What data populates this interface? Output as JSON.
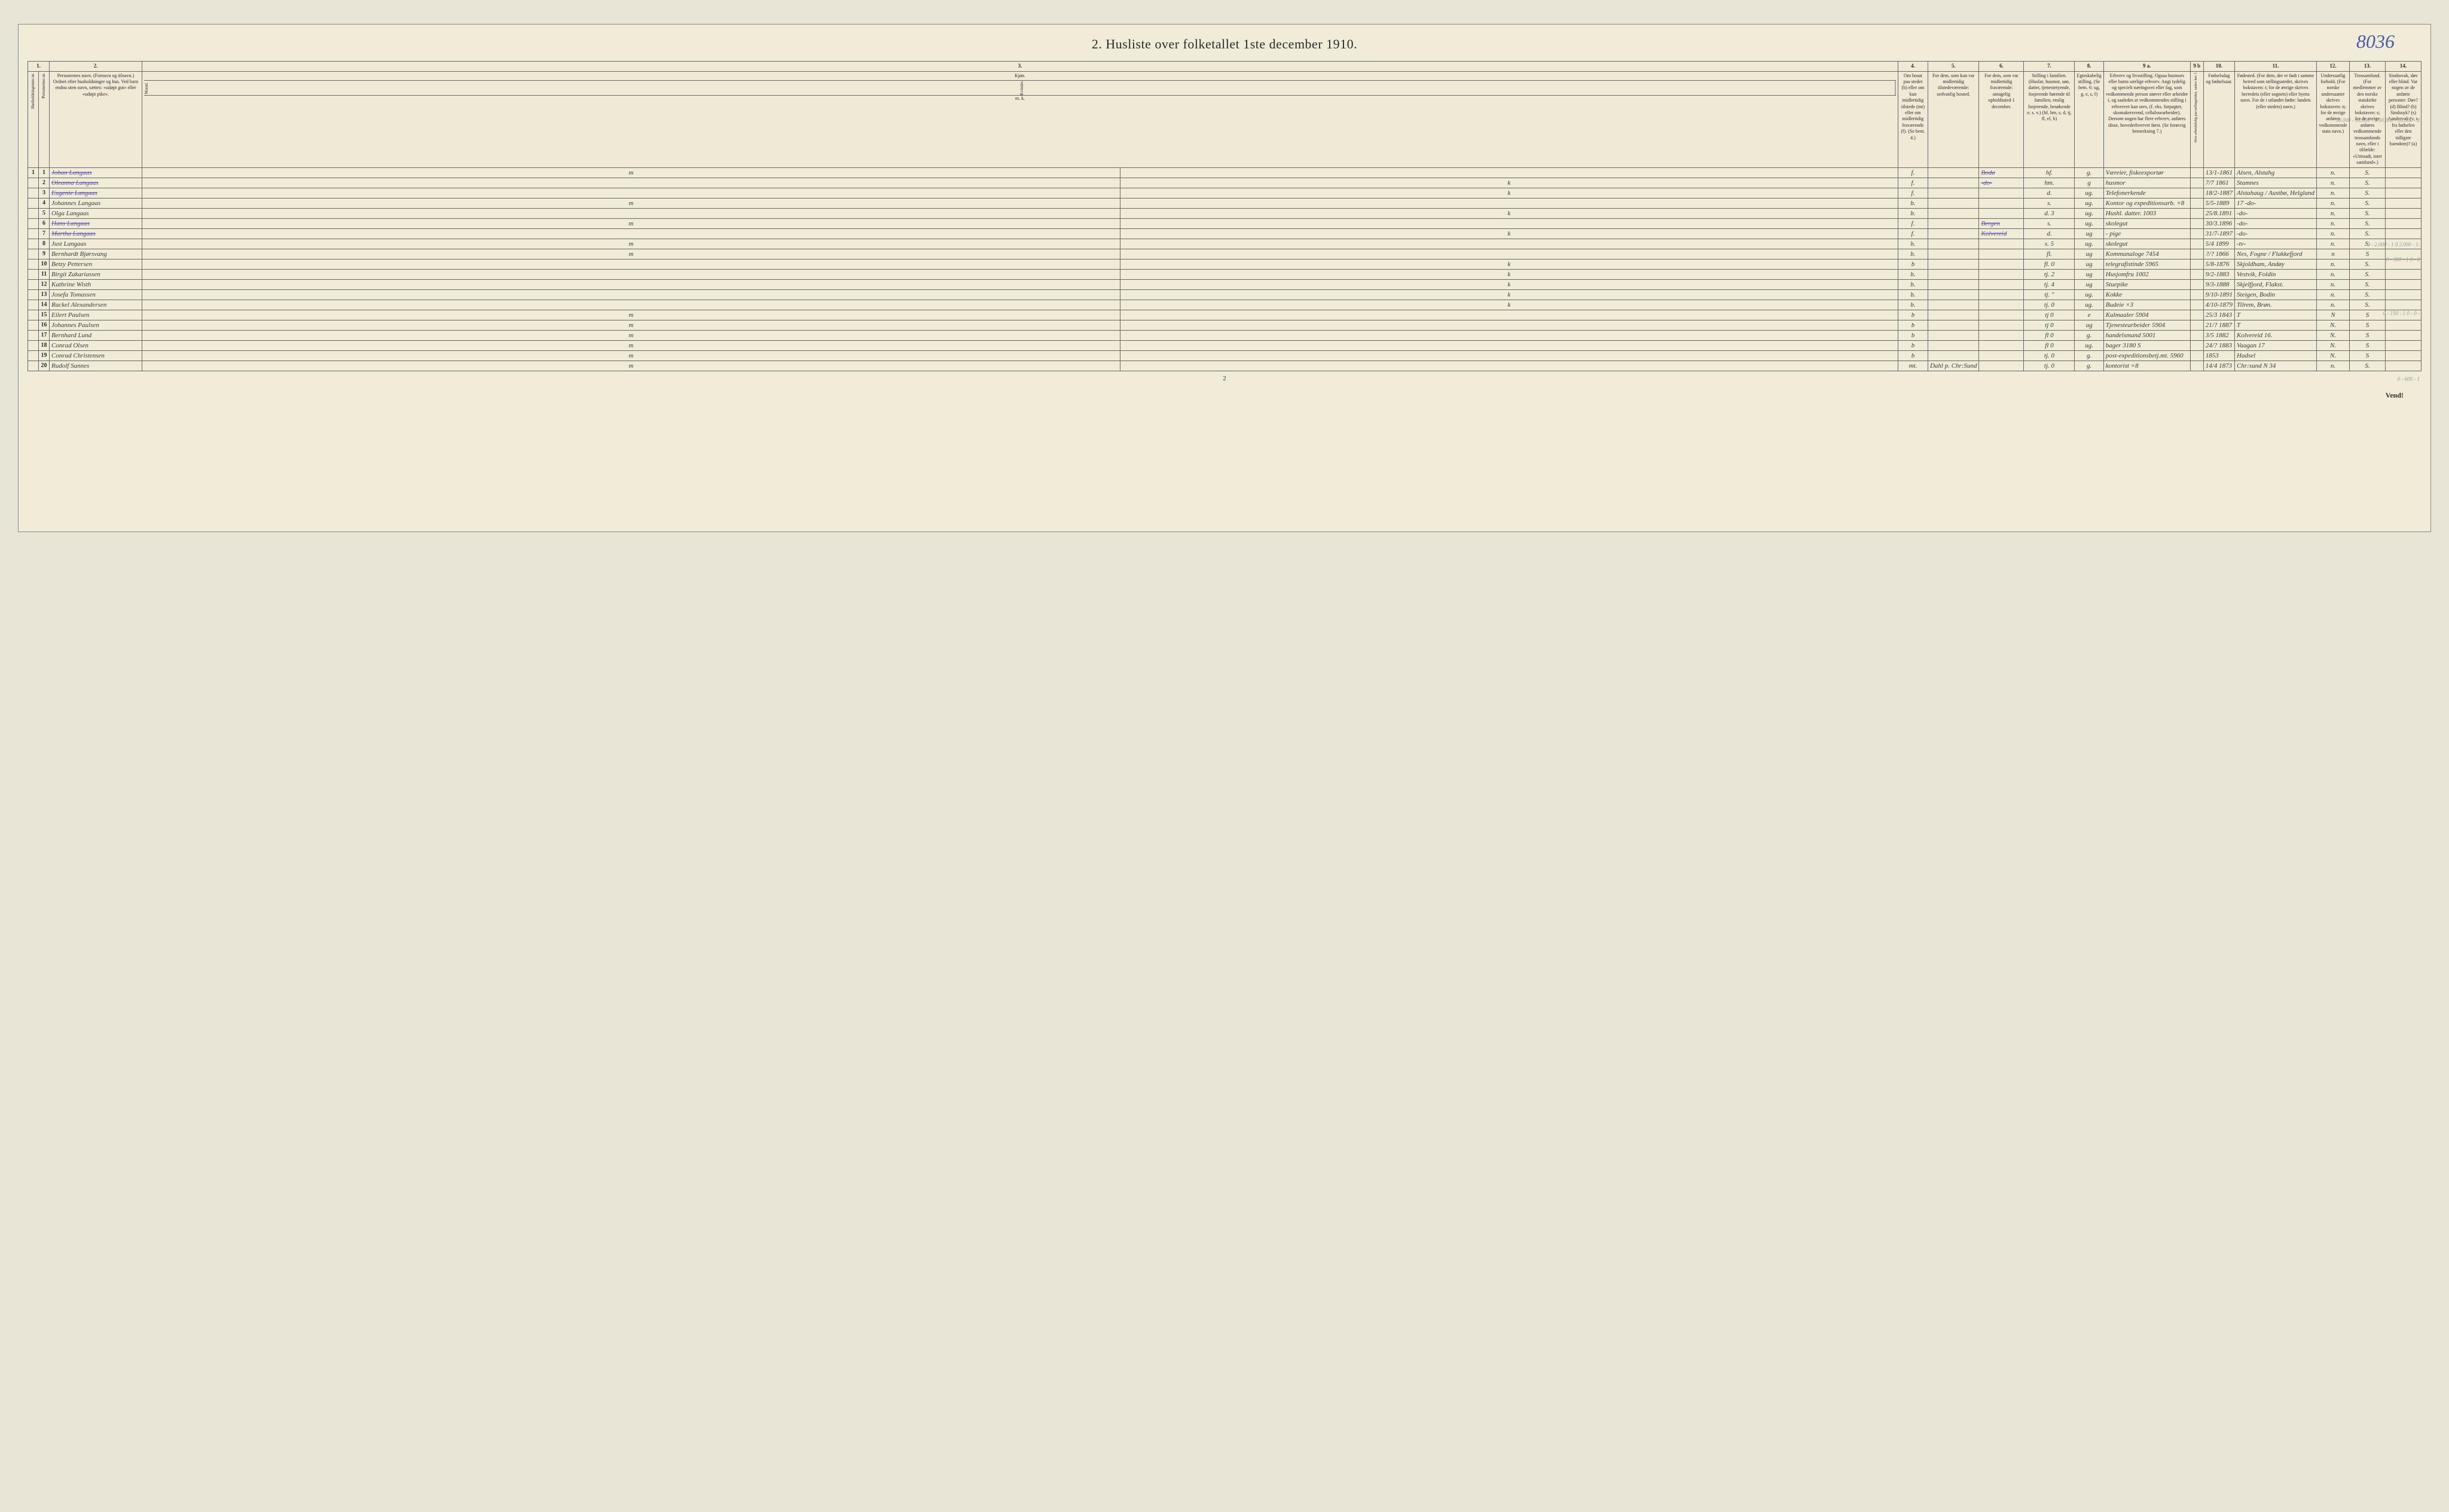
{
  "doc_number": "8036",
  "title": "2.  Husliste over folketallet 1ste december 1910.",
  "page_footer_num": "2",
  "vend_text": "Vend!",
  "columns": {
    "num1": "1.",
    "num2": "2.",
    "num3": "3.",
    "num4": "4.",
    "num5": "5.",
    "num6": "6.",
    "num7": "7.",
    "num8": "8.",
    "num9a": "9 a.",
    "num9b": "9 b",
    "num10": "10.",
    "num11": "11.",
    "num12": "12.",
    "num13": "13.",
    "num14": "14."
  },
  "headers": {
    "h1a": "Husholdningernes nr.",
    "h1b": "Personernes nr.",
    "h2": "Personernes navn.\n(Fornavn og tilnavn.)\nOrdnet efter husholdninger og hus.\nVed barn endnu uten navn, sættes: «udøpt gut» eller «udøpt pike».",
    "h3": "Kjøn.",
    "h3m": "Mænd.",
    "h3k": "Kvinder.",
    "h3mk": "m.  k.",
    "h4": "Om bosat paa stedet (b) eller om kun midlertidig tilstede (mt) eller om midlertidig fraværende (f). (Se bem. 4.)",
    "h5": "For dem, som kun var midlertidig tilstedeværende:\nsedvanlig bosted.",
    "h6": "For dem, som var midlertidig fraværende:\nantagelig opholdssted 1 december.",
    "h7": "Stilling i familien.\n(Husfar, husmor, søn, datter, tjenestetyende, losjerende hørende til familien, enslig losjerende, besøkende o. s. v.)\n(hf, hm, s, d, tj, fl, el, b)",
    "h8": "Egteskabelig stilling. (Se bem. 6: ug, g, e, s, f)",
    "h9a": "Erhverv og livsstilling.\nOgsaa husmors eller barns særlige erhverv. Angi tydelig og specielt næringsvei eller fag, som vedkommende person utøver eller arbeider i, og saaledes at vedkommendes stilling i erhvervet kan sees, (f. eks. forpagter, skomakersvend, cellulosearbeider). Dersom nogen har flere erhverv, anføres disse, hovederhvervet først. (Se forøvrig bemerkning 7.)",
    "h9b": "Hvis arbeidsledig paa tællingstiden, sættes her: l",
    "h10": "Fødselsdag og fødselsaar.",
    "h11": "Fødested.\n(For dem, der er født i samme herred som tællingsstedet, skrives bokstaven: t; for de øvrige skrives herredets (eller sognets) eller byens navn. For de i utlandet fødte: landets (eller stedets) navn.)",
    "h12": "Undersaatlig forhold.\n(For norske undersaatter skrives bokstaven: n; for de øvrige anføres vedkommende stats navn.)",
    "h13": "Trossamfund.\n(For medlemmer av den norske statskirke skrives bokstaven: s; for de øvrige anføres vedkommende trossamfunds navn, eller i tilfælde: «Uttraadt, intet samfund».)",
    "h14": "Sindssvak, døv eller blind.\nVar nogen av de anførte personer:\nDøv?      (d)\nBlind?     (b)\nSindssyk? (s)\nAandssvak (v. s. fra fødselen eller den tidligste barndom)? (a)"
  },
  "margin_note_top": "30.000 - 10.000 - 3\n30.000 - 10.000 - 2",
  "margin_note_9": "0 - 2.000 - 1\n0   2.000 - 1.",
  "margin_note_10": "0 - 300 - 1\n0 -  0",
  "margin_note_14": "0 - 150 - 1\n0 -  0 -",
  "margin_note_19": "0 - 600 - 1",
  "rows": [
    {
      "hn": "1",
      "pn": "1",
      "name": "Johan Langaas",
      "sex_m": "m",
      "sex_k": "",
      "res": "f.",
      "usual": "",
      "away": "Bodø",
      "fam": "hf.",
      "marit": "g.",
      "occ": "Væreier, fiskeexportør",
      "wl": "",
      "bd": "13/1-1861",
      "bp": "Alsen, Alstahg",
      "nat": "n.",
      "rel": "S.",
      "dis": "",
      "strike": true
    },
    {
      "hn": "",
      "pn": "2",
      "name": "Oleanna Langaas",
      "sex_m": "",
      "sex_k": "k",
      "res": "f.",
      "usual": "",
      "away": "-do-",
      "fam": "hm.",
      "marit": "g",
      "occ": "husmor",
      "wl": "",
      "bd": "7/7 1861",
      "bp": "Stamnes",
      "nat": "n.",
      "rel": "S.",
      "dis": "",
      "strike": true
    },
    {
      "hn": "",
      "pn": "3",
      "name": "Eugenie Langaas",
      "sex_m": "",
      "sex_k": "k",
      "res": "f.",
      "usual": "",
      "away": "",
      "fam": "d.",
      "marit": "ug.",
      "occ": "Telefonerkende",
      "wl": "",
      "bd": "18/2-1887",
      "bp": "Alstahaug / Austbø, Helgland",
      "nat": "n.",
      "rel": "S.",
      "dis": "",
      "strike": true
    },
    {
      "hn": "",
      "pn": "4",
      "name": "Johannes Langaas",
      "sex_m": "m",
      "sex_k": "",
      "res": "b.",
      "usual": "",
      "away": "",
      "fam": "s.",
      "marit": "ug.",
      "occ": "Kontor og expeditionsarb. ×8",
      "wl": "",
      "bd": "5/5-1889",
      "bp": "17  -do-",
      "nat": "n.",
      "rel": "S.",
      "dis": ""
    },
    {
      "hn": "",
      "pn": "5",
      "name": "Olga Langaas",
      "sex_m": "",
      "sex_k": "k",
      "res": "b.",
      "usual": "",
      "away": "",
      "fam": "d.  3",
      "marit": "ug.",
      "occ": "Hushl. datter. 1003",
      "wl": "",
      "bd": "25/8.1891",
      "bp": "-do-",
      "nat": "n.",
      "rel": "S.",
      "dis": ""
    },
    {
      "hn": "",
      "pn": "6",
      "name": "Hans Langaas",
      "sex_m": "m",
      "sex_k": "",
      "res": "f.",
      "usual": "",
      "away": "Bergen",
      "fam": "s.",
      "marit": "ug.",
      "occ": "skolegut",
      "wl": "",
      "bd": "30/3.1896",
      "bp": "-do-",
      "nat": "n.",
      "rel": "S.",
      "dis": "",
      "strike": true
    },
    {
      "hn": "",
      "pn": "7",
      "name": "Martha Langaas",
      "sex_m": "",
      "sex_k": "k",
      "res": "f.",
      "usual": "",
      "away": "Kolvereid",
      "fam": "d.",
      "marit": "ug",
      "occ": "- pige",
      "wl": "",
      "bd": "31/7-1897",
      "bp": "-do-",
      "nat": "n.",
      "rel": "S.",
      "dis": "",
      "strike": true
    },
    {
      "hn": "",
      "pn": "8",
      "name": "Just Langaas",
      "sex_m": "m",
      "sex_k": "",
      "res": "b.",
      "usual": "",
      "away": "",
      "fam": "s.  5",
      "marit": "ug.",
      "occ": "skolegut",
      "wl": "",
      "bd": "5/4 1899",
      "bp": "-tv-",
      "nat": "n.",
      "rel": "S.",
      "dis": ""
    },
    {
      "hn": "",
      "pn": "9",
      "name": "Bernhardt Bjørsvang",
      "sex_m": "m",
      "sex_k": "",
      "res": "b.",
      "usual": "",
      "away": "",
      "fam": "fl.",
      "marit": "ug",
      "occ": "Kommunaloge 7454",
      "wl": "",
      "bd": "?/? 1866",
      "bp": "Nes, Fogne / Flakkefjord",
      "nat": "n",
      "rel": "S",
      "dis": ""
    },
    {
      "hn": "",
      "pn": "10",
      "name": "Betzy Pettersen",
      "sex_m": "",
      "sex_k": "k",
      "res": "b",
      "usual": "",
      "away": "",
      "fam": "fl.  0",
      "marit": "ug",
      "occ": "telegrafistinde 5965",
      "wl": "",
      "bd": "5/8-1876",
      "bp": "Skjoldham, Andøy",
      "nat": "n.",
      "rel": "S.",
      "dis": ""
    },
    {
      "hn": "",
      "pn": "11",
      "name": "Birgit Zakariassen",
      "sex_m": "",
      "sex_k": "k",
      "res": "b.",
      "usual": "",
      "away": "",
      "fam": "tj.  2",
      "marit": "ug",
      "occ": "Husjomfru 1002",
      "wl": "",
      "bd": "9/2-1883",
      "bp": "Vestvik, Foldin",
      "nat": "n.",
      "rel": "S.",
      "dis": ""
    },
    {
      "hn": "",
      "pn": "12",
      "name": "Kathrine Wisth",
      "sex_m": "",
      "sex_k": "k",
      "res": "b.",
      "usual": "",
      "away": "",
      "fam": "tj.  4",
      "marit": "ug",
      "occ": "Stuepike",
      "wl": "",
      "bd": "9/3-1888",
      "bp": "Skjelfjord, Flakst.",
      "nat": "n.",
      "rel": "S.",
      "dis": ""
    },
    {
      "hn": "",
      "pn": "13",
      "name": "Josefa Tomassen",
      "sex_m": "",
      "sex_k": "k",
      "res": "b.",
      "usual": "",
      "away": "",
      "fam": "tj.  \"",
      "marit": "ug.",
      "occ": "Kokke",
      "wl": "",
      "bd": "9/10-1891",
      "bp": "Steigen, Bodin",
      "nat": "n.",
      "rel": "S.",
      "dis": ""
    },
    {
      "hn": "",
      "pn": "14",
      "name": "Rackel Alexandersen",
      "sex_m": "",
      "sex_k": "k",
      "res": "b.",
      "usual": "",
      "away": "",
      "fam": "tj.  0",
      "marit": "ug.",
      "occ": "Budeie ×3",
      "wl": "",
      "bd": "4/10-1879",
      "bp": "Tilrem, Brøn.",
      "nat": "n.",
      "rel": "S.",
      "dis": ""
    },
    {
      "hn": "",
      "pn": "15",
      "name": "Eilert Paulsen",
      "sex_m": "m",
      "sex_k": "",
      "res": "b",
      "usual": "",
      "away": "",
      "fam": "tj    0",
      "marit": "e",
      "occ": "Kulmaaler 5904",
      "wl": "",
      "bd": "25/3 1843",
      "bp": "T",
      "nat": "N",
      "rel": "S",
      "dis": ""
    },
    {
      "hn": "",
      "pn": "16",
      "name": "Johannes Paulsen",
      "sex_m": "m",
      "sex_k": "",
      "res": "b",
      "usual": "",
      "away": "",
      "fam": "tj    0",
      "marit": "ug",
      "occ": "Tjenestearbeider 5904",
      "wl": "",
      "bd": "21/? 1887",
      "bp": "T",
      "nat": "N.",
      "rel": "S",
      "dis": ""
    },
    {
      "hn": "",
      "pn": "17",
      "name": "Bernhard Lund",
      "sex_m": "m",
      "sex_k": "",
      "res": "b",
      "usual": "",
      "away": "",
      "fam": "fl    0",
      "marit": "g.",
      "occ": "handelsmand 5001",
      "wl": "",
      "bd": "3/5 1882",
      "bp": "Kolvereid 16.",
      "nat": "N.",
      "rel": "S",
      "dis": ""
    },
    {
      "hn": "",
      "pn": "18",
      "name": "Conrad Olsen",
      "sex_m": "m",
      "sex_k": "",
      "res": "b",
      "usual": "",
      "away": "",
      "fam": "fl    0",
      "marit": "ug.",
      "occ": "bager   3180    S",
      "wl": "",
      "bd": "24/? 1883",
      "bp": "Vaagan 17",
      "nat": "N.",
      "rel": "S",
      "dis": ""
    },
    {
      "hn": "",
      "pn": "19",
      "name": "Conrad Christensen",
      "sex_m": "m",
      "sex_k": "",
      "res": "b",
      "usual": "",
      "away": "",
      "fam": "tj.   0",
      "marit": "g.",
      "occ": "post-expeditionsbetj.mt. 5960",
      "wl": "",
      "bd": "1853",
      "bp": "Hadsel",
      "nat": "N.",
      "rel": "S",
      "dis": ""
    },
    {
      "hn": "",
      "pn": "20",
      "name": "Rudolf Sannes",
      "sex_m": "m",
      "sex_k": "",
      "res": "mt.",
      "usual": "Dahl p. Chr:Sund",
      "away": "",
      "fam": "tj.   0",
      "marit": "g.",
      "occ": "kontorist ×8",
      "wl": "",
      "bd": "14/4 1873",
      "bp": "Chr:sund N 34",
      "nat": "n.",
      "rel": "S.",
      "dis": ""
    }
  ]
}
